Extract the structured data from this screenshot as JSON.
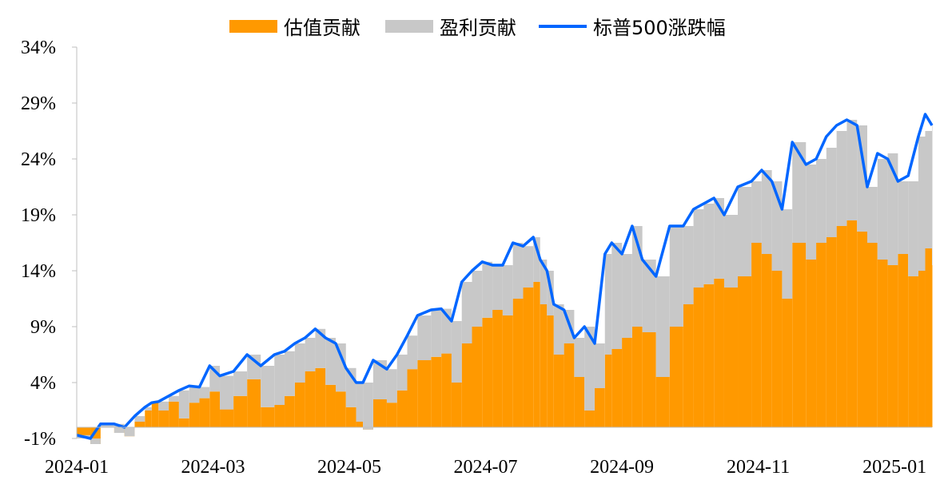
{
  "chart_data": {
    "type": "area",
    "title": "",
    "xlabel": "",
    "ylabel": "",
    "ylim": [
      -1,
      34
    ],
    "y_ticks": [
      "34%",
      "29%",
      "24%",
      "19%",
      "14%",
      "9%",
      "4%",
      "-1%"
    ],
    "y_tick_values": [
      34,
      29,
      24,
      19,
      14,
      9,
      4,
      -1
    ],
    "x_ticks": [
      "2024-01",
      "2024-03",
      "2024-05",
      "2024-07",
      "2024-09",
      "2024-11",
      "2025-01"
    ],
    "x_tick_positions": [
      0,
      2,
      4,
      6,
      8,
      10,
      12
    ],
    "x_range": [
      0,
      12.55
    ],
    "legend_placement": "top",
    "grid": false,
    "colors": {
      "valuation": "#FF9900",
      "earnings": "#C8C8C8",
      "sp500": "#0066FF"
    },
    "series": [
      {
        "name": "估值贡献",
        "kind": "bar",
        "x": [
          0.0,
          0.2,
          0.35,
          0.55,
          0.7,
          0.85,
          1.0,
          1.1,
          1.2,
          1.35,
          1.5,
          1.65,
          1.8,
          1.95,
          2.1,
          2.3,
          2.5,
          2.7,
          2.9,
          3.05,
          3.2,
          3.35,
          3.5,
          3.65,
          3.8,
          3.95,
          4.1,
          4.2,
          4.35,
          4.55,
          4.7,
          4.85,
          5.0,
          5.2,
          5.35,
          5.5,
          5.65,
          5.8,
          5.95,
          6.1,
          6.25,
          6.4,
          6.55,
          6.7,
          6.8,
          6.9,
          7.0,
          7.15,
          7.3,
          7.45,
          7.6,
          7.75,
          7.85,
          8.0,
          8.15,
          8.3,
          8.5,
          8.7,
          8.9,
          9.05,
          9.2,
          9.35,
          9.5,
          9.7,
          9.9,
          10.05,
          10.2,
          10.35,
          10.5,
          10.7,
          10.85,
          11.0,
          11.15,
          11.3,
          11.45,
          11.6,
          11.75,
          11.9,
          12.05,
          12.2,
          12.35,
          12.45,
          12.55
        ],
        "values": [
          -1.0,
          -1.5,
          0.0,
          -0.5,
          -0.8,
          0.5,
          1.5,
          2.2,
          1.5,
          2.3,
          0.8,
          2.2,
          2.6,
          3.2,
          1.6,
          2.8,
          4.3,
          1.8,
          2.0,
          2.8,
          4.0,
          5.0,
          5.3,
          3.8,
          3.2,
          1.8,
          0.5,
          -0.2,
          2.5,
          2.2,
          3.3,
          5.2,
          6.0,
          6.3,
          6.6,
          4.0,
          7.5,
          9.0,
          9.8,
          10.5,
          10.0,
          11.5,
          12.5,
          13.0,
          11.0,
          10.0,
          6.5,
          7.5,
          4.5,
          1.5,
          3.5,
          6.5,
          7.0,
          8.0,
          9.0,
          8.5,
          4.5,
          9.0,
          11.0,
          12.5,
          12.8,
          13.3,
          12.5,
          13.5,
          16.5,
          15.5,
          14.0,
          11.5,
          16.5,
          15.0,
          16.5,
          17.0,
          18.0,
          18.5,
          17.5,
          16.5,
          15.0,
          14.5,
          15.5,
          13.5,
          14.0,
          16.0,
          14.5
        ]
      },
      {
        "name": "盈利贡献",
        "kind": "bar",
        "stacked_on": "估值贡献",
        "x": [
          0.0,
          0.2,
          0.35,
          0.55,
          0.7,
          0.85,
          1.0,
          1.1,
          1.2,
          1.35,
          1.5,
          1.65,
          1.8,
          1.95,
          2.1,
          2.3,
          2.5,
          2.7,
          2.9,
          3.05,
          3.2,
          3.35,
          3.5,
          3.65,
          3.8,
          3.95,
          4.1,
          4.2,
          4.35,
          4.55,
          4.7,
          4.85,
          5.0,
          5.2,
          5.35,
          5.5,
          5.65,
          5.8,
          5.95,
          6.1,
          6.25,
          6.4,
          6.55,
          6.7,
          6.8,
          6.9,
          7.0,
          7.15,
          7.3,
          7.45,
          7.6,
          7.75,
          7.85,
          8.0,
          8.15,
          8.3,
          8.5,
          8.7,
          8.9,
          9.05,
          9.2,
          9.35,
          9.5,
          9.7,
          9.9,
          10.05,
          10.2,
          10.35,
          10.5,
          10.7,
          10.85,
          11.0,
          11.15,
          11.3,
          11.45,
          11.6,
          11.75,
          11.9,
          12.05,
          12.2,
          12.35,
          12.45,
          12.55
        ],
        "values": [
          0.3,
          0.5,
          0.3,
          0.8,
          0.8,
          0.5,
          0.3,
          0.0,
          0.8,
          0.5,
          2.5,
          1.5,
          1.0,
          2.3,
          3.0,
          2.2,
          2.2,
          3.7,
          4.5,
          4.0,
          3.5,
          3.0,
          3.5,
          4.2,
          4.3,
          3.5,
          3.5,
          4.2,
          3.5,
          3.0,
          3.2,
          3.0,
          4.0,
          4.2,
          4.0,
          5.5,
          5.5,
          5.0,
          5.0,
          4.0,
          4.5,
          5.0,
          3.7,
          4.0,
          4.0,
          4.0,
          4.5,
          3.0,
          3.5,
          7.5,
          4.0,
          9.0,
          9.5,
          7.5,
          9.0,
          6.5,
          9.0,
          9.0,
          7.0,
          7.0,
          7.2,
          7.2,
          6.5,
          8.0,
          5.5,
          7.5,
          8.0,
          8.0,
          9.0,
          8.5,
          7.5,
          8.0,
          8.5,
          9.0,
          9.5,
          5.0,
          9.0,
          10.0,
          6.5,
          8.5,
          12.0,
          10.5,
          12.5
        ]
      },
      {
        "name": "标普500涨跌幅",
        "kind": "line",
        "x": [
          0.0,
          0.2,
          0.35,
          0.55,
          0.7,
          0.85,
          1.0,
          1.1,
          1.2,
          1.35,
          1.5,
          1.65,
          1.8,
          1.95,
          2.1,
          2.3,
          2.5,
          2.7,
          2.9,
          3.05,
          3.2,
          3.35,
          3.5,
          3.65,
          3.8,
          3.95,
          4.1,
          4.2,
          4.35,
          4.55,
          4.7,
          4.85,
          5.0,
          5.2,
          5.35,
          5.5,
          5.65,
          5.8,
          5.95,
          6.1,
          6.25,
          6.4,
          6.55,
          6.7,
          6.8,
          6.9,
          7.0,
          7.15,
          7.3,
          7.45,
          7.6,
          7.75,
          7.85,
          8.0,
          8.15,
          8.3,
          8.5,
          8.7,
          8.9,
          9.05,
          9.2,
          9.35,
          9.5,
          9.7,
          9.9,
          10.05,
          10.2,
          10.35,
          10.5,
          10.7,
          10.85,
          11.0,
          11.15,
          11.3,
          11.45,
          11.6,
          11.75,
          11.9,
          12.05,
          12.2,
          12.35,
          12.45,
          12.55
        ],
        "values": [
          -0.7,
          -1.0,
          0.3,
          0.3,
          0.0,
          1.0,
          1.8,
          2.2,
          2.3,
          2.8,
          3.3,
          3.7,
          3.6,
          5.5,
          4.6,
          5.0,
          6.5,
          5.5,
          6.5,
          6.8,
          7.5,
          8.0,
          8.8,
          8.0,
          7.5,
          5.3,
          4.0,
          4.0,
          6.0,
          5.2,
          6.5,
          8.2,
          10.0,
          10.5,
          10.6,
          9.5,
          13.0,
          14.0,
          14.8,
          14.5,
          14.5,
          16.5,
          16.2,
          17.0,
          15.0,
          14.0,
          11.0,
          10.5,
          8.0,
          9.0,
          7.5,
          15.5,
          16.5,
          15.5,
          18.0,
          15.0,
          13.5,
          18.0,
          18.0,
          19.5,
          20.0,
          20.5,
          19.0,
          21.5,
          22.0,
          23.0,
          22.0,
          19.5,
          25.5,
          23.5,
          24.0,
          26.0,
          27.0,
          27.5,
          27.0,
          21.5,
          24.5,
          24.0,
          22.0,
          22.5,
          26.0,
          28.0,
          27.0
        ]
      }
    ]
  }
}
